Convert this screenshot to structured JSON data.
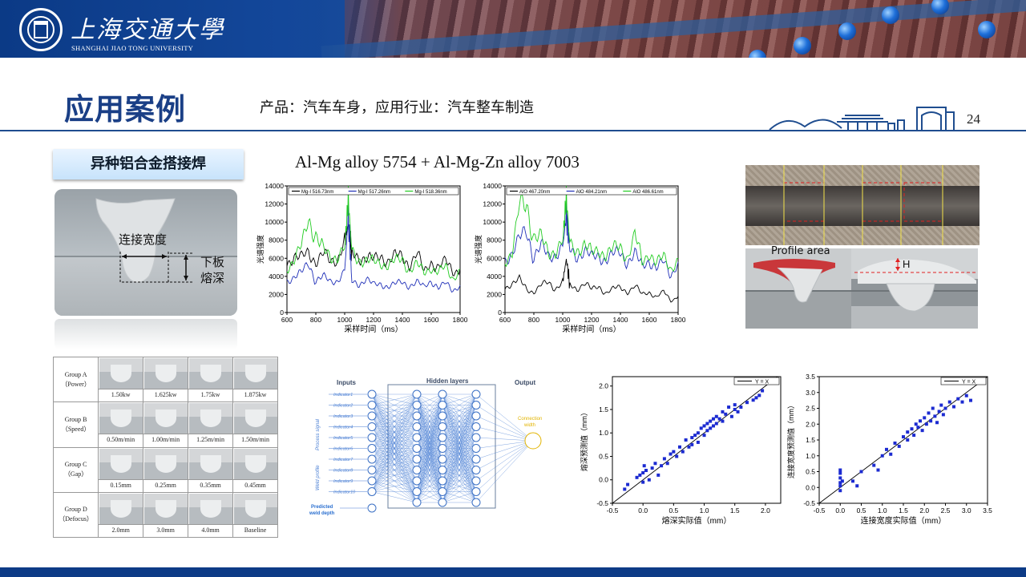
{
  "header": {
    "university_cn": "上海交通大學",
    "university_en": "SHANGHAI JIAO TONG UNIVERSITY"
  },
  "page": {
    "title": "应用案例",
    "subtitle": "产品：汽车车身，应用行业：汽车整车制造",
    "number": "24"
  },
  "section_tag": "异种铝合金搭接焊",
  "weld_photo_labels": {
    "width": "连接宽度",
    "depth_line1": "下板",
    "depth_line2": "熔深"
  },
  "alloy_title": "Al-Mg alloy 5754 + Al-Mg-Zn alloy 7003",
  "profile_label": "Profile area",
  "profile_h": "H",
  "process_table": {
    "rows": [
      {
        "group": "Group A",
        "param": "（Power）",
        "values": [
          "1.50kw",
          "1.625kw",
          "1.75kw",
          "1.875kw"
        ]
      },
      {
        "group": "Group B",
        "param": "（Speed）",
        "values": [
          "0.50m/min",
          "1.00m/min",
          "1.25m/min",
          "1.50m/min"
        ]
      },
      {
        "group": "Group C",
        "param": "（Gap）",
        "values": [
          "0.15mm",
          "0.25mm",
          "0.35mm",
          "0.45mm"
        ]
      },
      {
        "group": "Group D",
        "param": "（Defocus）",
        "values": [
          "2.0mm",
          "3.0mm",
          "4.0mm",
          "Baseline"
        ]
      }
    ]
  },
  "network": {
    "inputs_label": "Inputs",
    "hidden_label": "Hidden layers",
    "output_label": "Output",
    "indicators": [
      "Indicator1",
      "Indicator2",
      "Indicator3",
      "Indicator4",
      "Indicator5",
      "Indicator6",
      "Indicator7",
      "Indicator8",
      "Indicator9",
      "Indicator10"
    ],
    "process_signal": "Process signal",
    "weld_profile": "Weld profile",
    "predicted_line1": "Predicted",
    "predicted_line2": "weld depth",
    "connection_line1": "Connection",
    "connection_line2": "width"
  },
  "colors": {
    "brand_blue": "#1a3f86",
    "series_black": "#000000",
    "series_blue": "#1f2fb8",
    "series_green": "#22cc22",
    "scatter": "#1c2bd1"
  },
  "chart_data": [
    {
      "type": "line",
      "xlabel": "采样时间（ms）",
      "ylabel": "光谱强度",
      "xlim": [
        600,
        1800
      ],
      "ylim": [
        0,
        14000
      ],
      "xticks": [
        600,
        800,
        1000,
        1200,
        1400,
        1600,
        1800
      ],
      "yticks": [
        0,
        2000,
        4000,
        6000,
        8000,
        10000,
        12000,
        14000
      ],
      "legend": "top",
      "x": [
        600,
        650,
        700,
        750,
        800,
        850,
        900,
        950,
        1000,
        1025,
        1050,
        1100,
        1150,
        1200,
        1250,
        1300,
        1350,
        1400,
        1450,
        1500,
        1550,
        1600,
        1650,
        1700,
        1750,
        1800
      ],
      "series": [
        {
          "name": "Mg-I 516.73nm",
          "color": "#000000",
          "values": [
            5600,
            6200,
            5900,
            6800,
            5700,
            6400,
            5600,
            6000,
            8000,
            9800,
            6500,
            6200,
            6100,
            5700,
            6300,
            5800,
            6200,
            6100,
            5400,
            6500,
            4400,
            5700,
            5000,
            5600,
            4600,
            4800
          ]
        },
        {
          "name": "Mg-I 517.26nm",
          "color": "#1f2fb8",
          "values": [
            3600,
            3900,
            4300,
            5600,
            3600,
            3900,
            3400,
            3600,
            4600,
            10600,
            3400,
            3200,
            3700,
            3000,
            3200,
            2900,
            3100,
            3400,
            3000,
            3300,
            2800,
            3600,
            2700,
            3200,
            2500,
            3000
          ]
        },
        {
          "name": "Mg-I 518.36nm",
          "color": "#22cc22",
          "values": [
            5000,
            5800,
            7200,
            10500,
            8700,
            6800,
            6000,
            6400,
            7200,
            12600,
            6700,
            6000,
            5700,
            5500,
            5600,
            5300,
            5600,
            5900,
            4800,
            5300,
            4300,
            5100,
            4500,
            4900,
            3800,
            4800
          ]
        }
      ]
    },
    {
      "type": "line",
      "xlabel": "采样时间（ms）",
      "ylabel": "光谱强度",
      "xlim": [
        600,
        1800
      ],
      "ylim": [
        0,
        14000
      ],
      "xticks": [
        600,
        800,
        1000,
        1200,
        1400,
        1600,
        1800
      ],
      "yticks": [
        0,
        2000,
        4000,
        6000,
        8000,
        10000,
        12000,
        14000
      ],
      "legend": "top",
      "x": [
        600,
        650,
        700,
        750,
        800,
        850,
        900,
        950,
        1000,
        1025,
        1050,
        1100,
        1150,
        1200,
        1250,
        1300,
        1350,
        1400,
        1450,
        1500,
        1550,
        1600,
        1650,
        1700,
        1750,
        1800
      ],
      "series": [
        {
          "name": "AlO 467.20nm",
          "color": "#000000",
          "values": [
            2800,
            3200,
            3600,
            2600,
            2300,
            3000,
            3300,
            2700,
            3400,
            5900,
            3000,
            2600,
            3300,
            2500,
            2900,
            2200,
            2600,
            2800,
            2300,
            2900,
            2000,
            2300,
            1700,
            2300,
            1300,
            1800
          ]
        },
        {
          "name": "AlO 484.21nm",
          "color": "#1f2fb8",
          "values": [
            6000,
            6500,
            8000,
            9300,
            6300,
            7200,
            6200,
            6600,
            7200,
            10800,
            6900,
            6400,
            6800,
            6000,
            6400,
            5900,
            6300,
            6700,
            5700,
            6400,
            5000,
            5900,
            4900,
            5500,
            4200,
            5600
          ]
        },
        {
          "name": "AlO 486.61nm",
          "color": "#22cc22",
          "values": [
            5900,
            6600,
            11600,
            12300,
            8500,
            8100,
            6500,
            7000,
            7900,
            12800,
            7500,
            7100,
            7400,
            6400,
            7100,
            6400,
            6900,
            7300,
            6200,
            8500,
            5400,
            6800,
            5500,
            6000,
            4900,
            6000
          ]
        }
      ]
    },
    {
      "type": "scatter",
      "xlabel": "熔深实际值（mm）",
      "ylabel": "熔深预测值（mm）",
      "xlim": [
        -0.5,
        2.25
      ],
      "ylim": [
        -0.5,
        2.2
      ],
      "xticks": [
        -0.5,
        0.0,
        0.5,
        1.0,
        1.5,
        2.0
      ],
      "yticks": [
        -0.5,
        0.0,
        0.5,
        1.0,
        1.5,
        2.0
      ],
      "legend": "top-right",
      "reference_line": "Y = X",
      "points": [
        [
          -0.3,
          -0.2
        ],
        [
          -0.25,
          -0.1
        ],
        [
          -0.1,
          0.05
        ],
        [
          -0.05,
          0.1
        ],
        [
          0.0,
          -0.05
        ],
        [
          0.0,
          0.15
        ],
        [
          0.02,
          0.3
        ],
        [
          0.05,
          0.2
        ],
        [
          0.1,
          0.0
        ],
        [
          0.15,
          0.25
        ],
        [
          0.2,
          0.35
        ],
        [
          0.25,
          0.1
        ],
        [
          0.3,
          0.3
        ],
        [
          0.35,
          0.45
        ],
        [
          0.4,
          0.35
        ],
        [
          0.45,
          0.55
        ],
        [
          0.5,
          0.6
        ],
        [
          0.55,
          0.5
        ],
        [
          0.6,
          0.7
        ],
        [
          0.65,
          0.6
        ],
        [
          0.7,
          0.85
        ],
        [
          0.75,
          0.7
        ],
        [
          0.8,
          0.9
        ],
        [
          0.8,
          0.75
        ],
        [
          0.85,
          0.95
        ],
        [
          0.9,
          0.8
        ],
        [
          0.9,
          1.0
        ],
        [
          0.95,
          1.1
        ],
        [
          1.0,
          0.95
        ],
        [
          1.0,
          1.15
        ],
        [
          1.05,
          1.2
        ],
        [
          1.05,
          1.05
        ],
        [
          1.1,
          1.1
        ],
        [
          1.1,
          1.25
        ],
        [
          1.15,
          1.15
        ],
        [
          1.15,
          1.3
        ],
        [
          1.2,
          1.2
        ],
        [
          1.2,
          1.35
        ],
        [
          1.25,
          1.3
        ],
        [
          1.3,
          1.45
        ],
        [
          1.3,
          1.25
        ],
        [
          1.35,
          1.4
        ],
        [
          1.4,
          1.55
        ],
        [
          1.45,
          1.35
        ],
        [
          1.5,
          1.5
        ],
        [
          1.5,
          1.6
        ],
        [
          1.55,
          1.45
        ],
        [
          1.6,
          1.55
        ],
        [
          1.7,
          1.65
        ],
        [
          1.8,
          1.7
        ],
        [
          1.85,
          1.75
        ],
        [
          1.9,
          1.8
        ],
        [
          1.95,
          1.9
        ]
      ]
    },
    {
      "type": "scatter",
      "xlabel": "连接宽度实际值（mm）",
      "ylabel": "连接宽度预测值（mm）",
      "xlim": [
        -0.5,
        3.5
      ],
      "ylim": [
        -0.5,
        3.5
      ],
      "xticks": [
        -0.5,
        0.0,
        0.5,
        1.0,
        1.5,
        2.0,
        2.5,
        3.0,
        3.5
      ],
      "yticks": [
        -0.5,
        0.0,
        0.5,
        1.0,
        1.5,
        2.0,
        2.5,
        3.0,
        3.5
      ],
      "legend": "top-right",
      "reference_line": "Y = X",
      "points": [
        [
          0.0,
          -0.1
        ],
        [
          0.0,
          0.05
        ],
        [
          0.0,
          0.15
        ],
        [
          0.0,
          0.3
        ],
        [
          0.0,
          0.45
        ],
        [
          0.0,
          0.55
        ],
        [
          0.05,
          0.2
        ],
        [
          0.3,
          0.2
        ],
        [
          0.4,
          0.05
        ],
        [
          0.5,
          0.5
        ],
        [
          0.8,
          0.7
        ],
        [
          0.9,
          0.55
        ],
        [
          1.0,
          1.0
        ],
        [
          1.1,
          1.2
        ],
        [
          1.2,
          1.05
        ],
        [
          1.3,
          1.4
        ],
        [
          1.4,
          1.3
        ],
        [
          1.5,
          1.6
        ],
        [
          1.6,
          1.5
        ],
        [
          1.6,
          1.75
        ],
        [
          1.7,
          1.85
        ],
        [
          1.75,
          1.65
        ],
        [
          1.8,
          2.0
        ],
        [
          1.85,
          1.9
        ],
        [
          1.9,
          2.1
        ],
        [
          1.95,
          1.8
        ],
        [
          2.0,
          2.2
        ],
        [
          2.05,
          2.0
        ],
        [
          2.1,
          2.35
        ],
        [
          2.15,
          2.1
        ],
        [
          2.2,
          2.5
        ],
        [
          2.25,
          2.25
        ],
        [
          2.3,
          2.05
        ],
        [
          2.35,
          2.4
        ],
        [
          2.4,
          2.6
        ],
        [
          2.45,
          2.3
        ],
        [
          2.5,
          2.5
        ],
        [
          2.6,
          2.7
        ],
        [
          2.7,
          2.55
        ],
        [
          2.8,
          2.8
        ],
        [
          2.9,
          2.7
        ],
        [
          3.0,
          2.9
        ],
        [
          3.1,
          2.75
        ]
      ]
    }
  ]
}
